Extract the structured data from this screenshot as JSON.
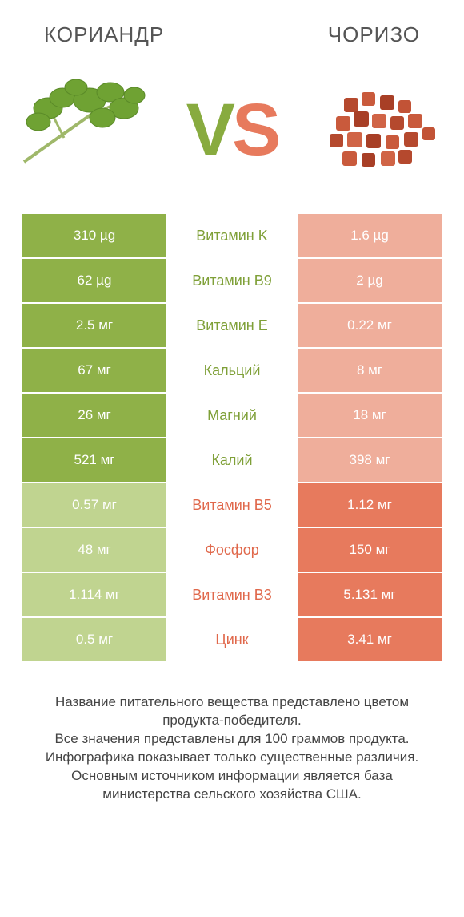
{
  "colors": {
    "green_full": "#8fb148",
    "green_dim": "#c0d490",
    "orange_full": "#e77a5d",
    "orange_dim": "#efae9b",
    "label_green": "#7fa038",
    "label_orange": "#e0684b",
    "background": "#ffffff"
  },
  "header": {
    "left": "КОРИАНДР",
    "right": "ЧОРИЗО"
  },
  "vs": {
    "v": "V",
    "s": "S"
  },
  "rows": [
    {
      "left": "310 µg",
      "label": "Витамин K",
      "right": "1.6 µg",
      "winner": "left"
    },
    {
      "left": "62 µg",
      "label": "Витамин B9",
      "right": "2 µg",
      "winner": "left"
    },
    {
      "left": "2.5 мг",
      "label": "Витамин E",
      "right": "0.22 мг",
      "winner": "left"
    },
    {
      "left": "67 мг",
      "label": "Кальций",
      "right": "8 мг",
      "winner": "left"
    },
    {
      "left": "26 мг",
      "label": "Магний",
      "right": "18 мг",
      "winner": "left"
    },
    {
      "left": "521 мг",
      "label": "Калий",
      "right": "398 мг",
      "winner": "left"
    },
    {
      "left": "0.57 мг",
      "label": "Витамин B5",
      "right": "1.12 мг",
      "winner": "right"
    },
    {
      "left": "48 мг",
      "label": "Фосфор",
      "right": "150 мг",
      "winner": "right"
    },
    {
      "left": "1.114 мг",
      "label": "Витамин B3",
      "right": "5.131 мг",
      "winner": "right"
    },
    {
      "left": "0.5 мг",
      "label": "Цинк",
      "right": "3.41 мг",
      "winner": "right"
    }
  ],
  "footer": {
    "line1": "Название питательного вещества представлено цветом продукта-победителя.",
    "line2": "Все значения представлены для 100 граммов продукта.",
    "line3": "Инфографика показывает только существенные различия.",
    "line4": "Основным источником информации является база министерства сельского хозяйства США."
  }
}
